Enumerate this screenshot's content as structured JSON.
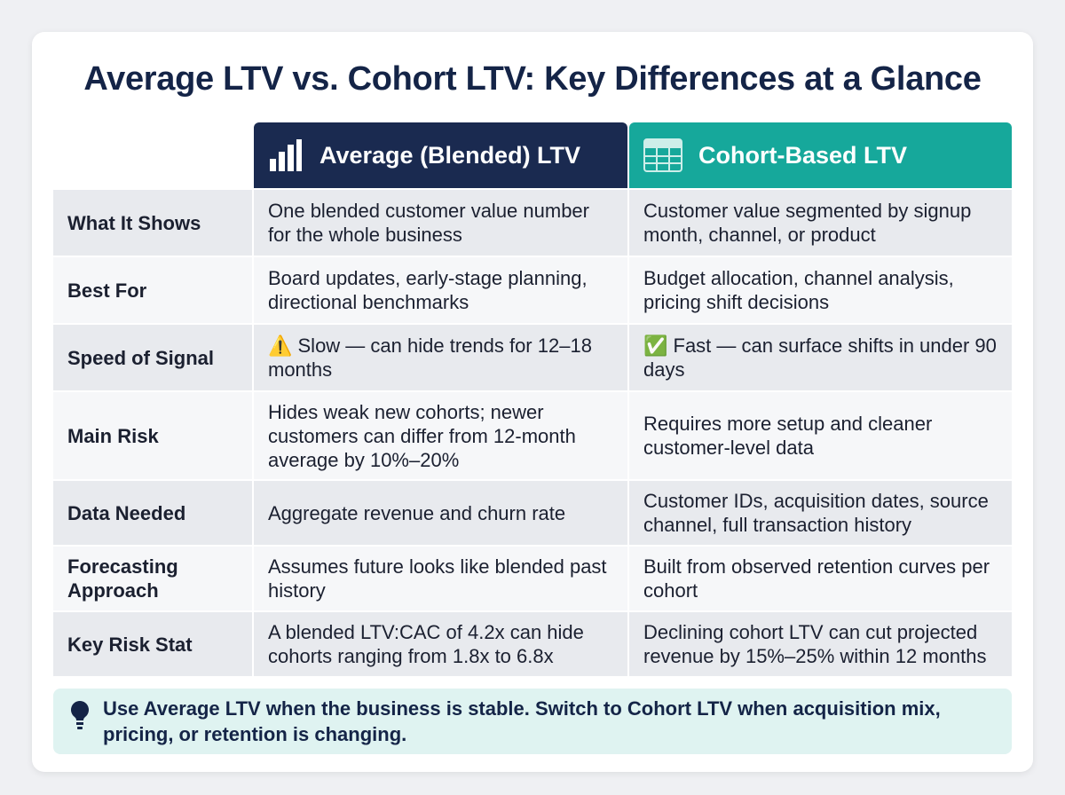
{
  "header": {
    "title": "Average LTV vs. Cohort LTV: Key Differences at a Glance"
  },
  "table": {
    "columns": [
      "Average (Blended) LTV",
      "Cohort-Based LTV"
    ],
    "rows": [
      [
        "What It Shows",
        "One blended customer value number for the whole business",
        "Customer value segmented by signup month, channel, or product"
      ],
      [
        "Best For",
        "Board updates, early-stage planning, directional benchmarks",
        "Budget allocation, channel analysis, pricing shift decisions"
      ],
      [
        "Speed of Signal",
        "⚠️ Slow — can hide trends for 12–18 months",
        "✅ Fast — can surface shifts in under 90 days"
      ],
      [
        "Main Risk",
        "Hides weak new cohorts; newer customers can differ from 12-month average by 10%–20%",
        "Requires more setup and cleaner customer-level data"
      ],
      [
        "Data Needed",
        "Aggregate revenue and churn rate",
        "Customer IDs, acquisition dates, source channel, full transaction history"
      ],
      [
        "Forecasting Approach",
        "Assumes future looks like blended past history",
        "Built from observed retention curves per cohort"
      ],
      [
        "Key Risk Stat",
        "A blended LTV:CAC of 4.2x can hide cohorts ranging from 1.8x to 6.8x",
        "Declining cohort LTV can cut projected revenue by 15%–25% within 12 months"
      ]
    ]
  },
  "footer": {
    "note": "Use Average LTV when the business is stable. Switch to Cohort LTV when acquisition mix, pricing, or retention is changing."
  }
}
